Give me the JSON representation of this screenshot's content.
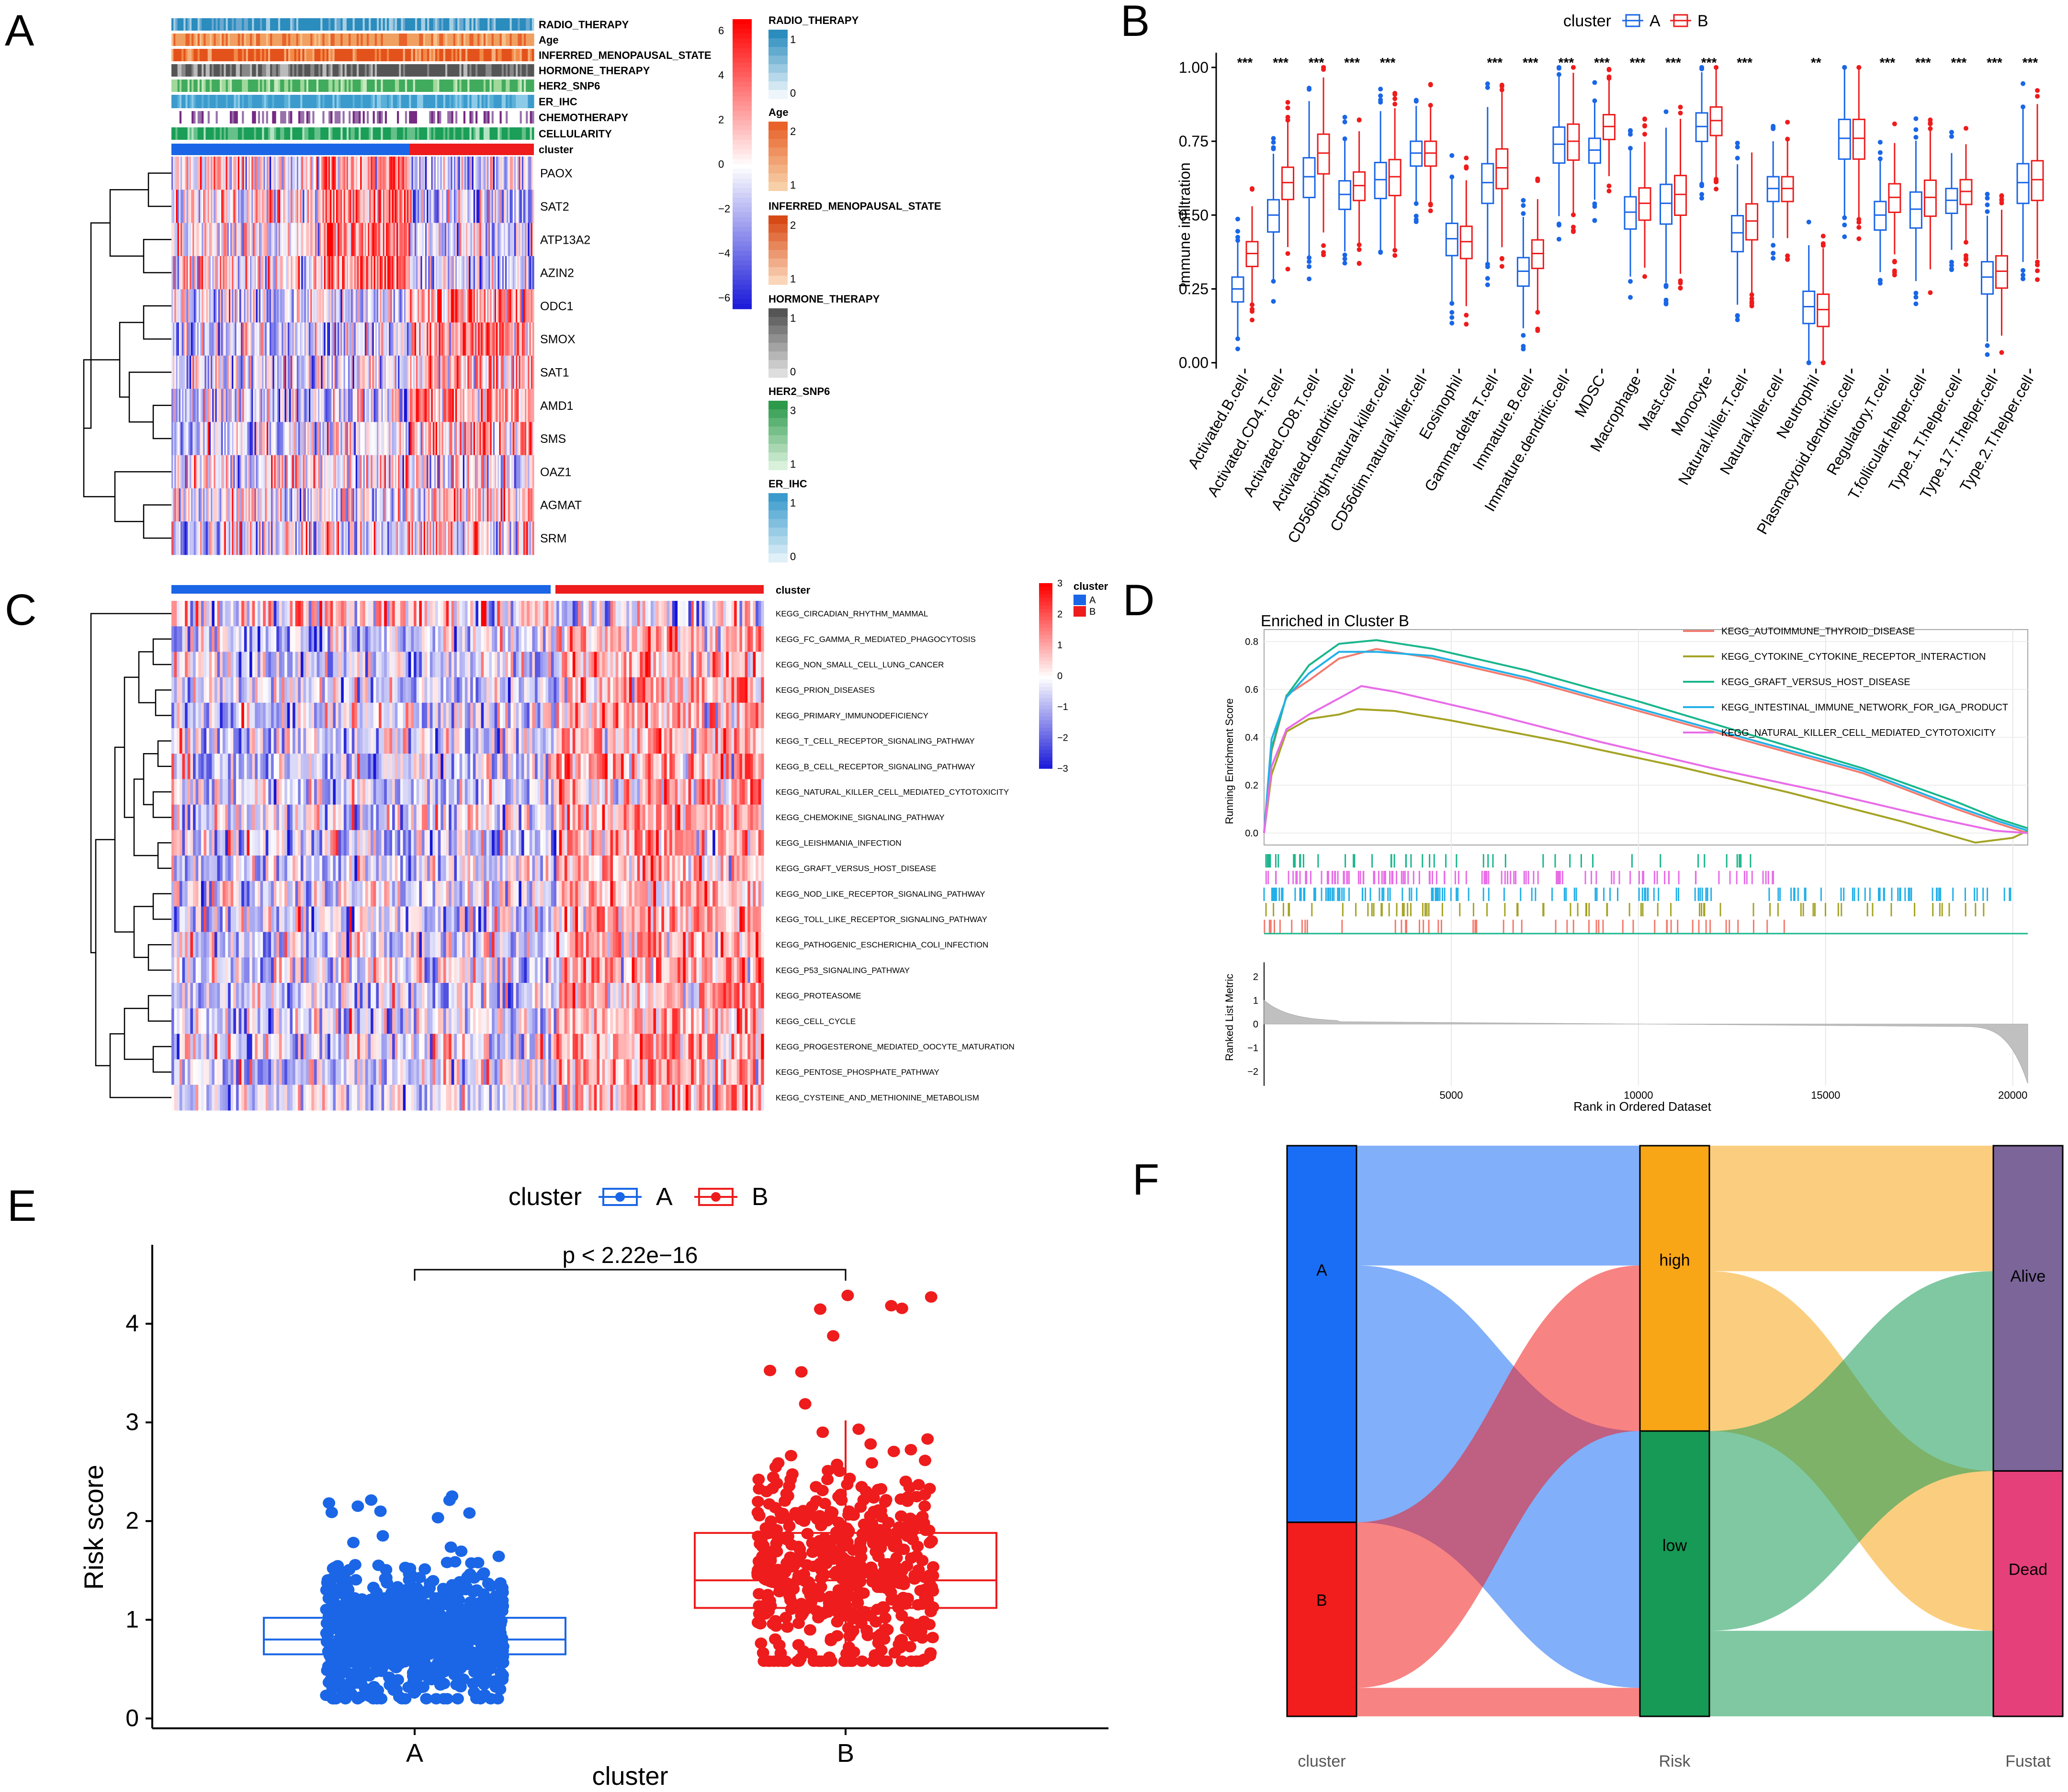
{
  "figure": {
    "panel_letters": [
      "A",
      "B",
      "C",
      "D",
      "E",
      "F"
    ]
  },
  "colors": {
    "cluster_a": "#1a66e6",
    "cluster_b": "#ee1c1c",
    "heat_high": "#ff0000",
    "heat_mid": "#ffffff",
    "heat_low": "#1414d8",
    "gsea_colors": [
      "#f37a6e",
      "#a5a324",
      "#1ab68c",
      "#22b0e8",
      "#e86ce8"
    ],
    "sankey_a": "#1a6ef5",
    "sankey_b": "#f21d1d",
    "sankey_high": "#f8a516",
    "sankey_low": "#169a55",
    "sankey_alive": "#7b6599",
    "sankey_dead": "#e5407a"
  },
  "chart_data": [
    {
      "panel": "A",
      "type": "heatmap",
      "annotation_tracks": [
        "RADIO_THERAPY",
        "Age",
        "INFERRED_MENOPAUSAL_STATE",
        "HORMONE_THERAPY",
        "HER2_SNP6",
        "ER_IHC",
        "CHEMOTHERAPY",
        "CELLULARITY",
        "cluster"
      ],
      "rows": [
        "PAOX",
        "SAT2",
        "ATP13A2",
        "AZIN2",
        "ODC1",
        "SMOX",
        "SAT1",
        "AMD1",
        "SMS",
        "OAZ1",
        "AGMAT",
        "SRM"
      ],
      "color_scale": {
        "ticks": [
          "6",
          "4",
          "2",
          "0",
          "−2",
          "−4",
          "−6"
        ]
      },
      "legends": [
        {
          "title": "RADIO_THERAPY",
          "labels": [
            "1",
            "0"
          ]
        },
        {
          "title": "Age",
          "labels": [
            "2",
            "1"
          ]
        },
        {
          "title": "INFERRED_MENOPAUSAL_STATE",
          "labels": [
            "2",
            "1"
          ]
        },
        {
          "title": "HORMONE_THERAPY",
          "labels": [
            "1",
            "0"
          ]
        },
        {
          "title": "HER2_SNP6",
          "labels": [
            "3",
            "1"
          ]
        },
        {
          "title": "ER_IHC",
          "labels": [
            "1",
            "0"
          ]
        }
      ]
    },
    {
      "panel": "B",
      "type": "box",
      "legend_title": "cluster",
      "legend_labels": [
        "A",
        "B"
      ],
      "ylabel": "Immune infiltration",
      "yticks": [
        "0.00",
        "0.25",
        "0.50",
        "0.75",
        "1.00"
      ],
      "ylim": [
        -0.02,
        1.05
      ],
      "categories": [
        "Activated.B.cell",
        "Activated.CD4.T.cell",
        "Activated.CD8.T.cell",
        "Activated.dendritic.cell",
        "CD56bright.natural.killer.cell",
        "CD56dim.natural.killer.cell",
        "Eosinophil",
        "Gamma.delta.T.cell",
        "Immature.B.cell",
        "Immature.dendritic.cell",
        "MDSC",
        "Macrophage",
        "Mast.cell",
        "Monocyte",
        "Natural.killer.T.cell",
        "Natural.killer.cell",
        "Neutrophil",
        "Plasmacytoid.dendritic.cell",
        "Regulatory.T.cell",
        "T.follicular.helper.cell",
        "Type.1.T.helper.cell",
        "Type.17.T.helper.cell",
        "Type.2.T.helper.cell"
      ],
      "significance": [
        "***",
        "***",
        "***",
        "***",
        "***",
        "",
        "",
        "***",
        "***",
        "***",
        "***",
        "***",
        "***",
        "***",
        "***",
        "",
        "**",
        "",
        "***",
        "***",
        "***",
        "***",
        "***"
      ],
      "series": [
        {
          "name": "A",
          "median": [
            0.25,
            0.5,
            0.63,
            0.57,
            0.62,
            0.71,
            0.42,
            0.61,
            0.31,
            0.74,
            0.72,
            0.51,
            0.54,
            0.8,
            0.44,
            0.59,
            0.19,
            0.76,
            0.5,
            0.52,
            0.55,
            0.29,
            0.61
          ]
        },
        {
          "name": "B",
          "median": [
            0.37,
            0.61,
            0.71,
            0.6,
            0.63,
            0.71,
            0.41,
            0.66,
            0.37,
            0.75,
            0.8,
            0.54,
            0.57,
            0.82,
            0.48,
            0.59,
            0.18,
            0.76,
            0.56,
            0.56,
            0.58,
            0.31,
            0.62
          ]
        }
      ]
    },
    {
      "panel": "C",
      "type": "heatmap",
      "annotation_label": "cluster",
      "legend_title": "cluster",
      "legend_labels": [
        "A",
        "B"
      ],
      "color_scale": {
        "ticks": [
          "3",
          "2",
          "1",
          "0",
          "−1",
          "−2",
          "−3"
        ]
      },
      "rows": [
        "KEGG_CIRCADIAN_RHYTHM_MAMMAL",
        "KEGG_FC_GAMMA_R_MEDIATED_PHAGOCYTOSIS",
        "KEGG_NON_SMALL_CELL_LUNG_CANCER",
        "KEGG_PRION_DISEASES",
        "KEGG_PRIMARY_IMMUNODEFICIENCY",
        "KEGG_T_CELL_RECEPTOR_SIGNALING_PATHWAY",
        "KEGG_B_CELL_RECEPTOR_SIGNALING_PATHWAY",
        "KEGG_NATURAL_KILLER_CELL_MEDIATED_CYTOTOXICITY",
        "KEGG_CHEMOKINE_SIGNALING_PATHWAY",
        "KEGG_LEISHMANIA_INFECTION",
        "KEGG_GRAFT_VERSUS_HOST_DISEASE",
        "KEGG_NOD_LIKE_RECEPTOR_SIGNALING_PATHWAY",
        "KEGG_TOLL_LIKE_RECEPTOR_SIGNALING_PATHWAY",
        "KEGG_PATHOGENIC_ESCHERICHIA_COLI_INFECTION",
        "KEGG_P53_SIGNALING_PATHWAY",
        "KEGG_PROTEASOME",
        "KEGG_CELL_CYCLE",
        "KEGG_PROGESTERONE_MEDIATED_OOCYTE_MATURATION",
        "KEGG_PENTOSE_PHOSPHATE_PATHWAY",
        "KEGG_CYSTEINE_AND_METHIONINE_METABOLISM"
      ]
    },
    {
      "panel": "D",
      "type": "line",
      "title": "Enriched in Cluster B",
      "ylabel": "Running Enrichment Score",
      "ylabel2": "Ranked List Metric",
      "xlabel": "Rank in Ordered Dataset",
      "xlim": [
        0,
        20400
      ],
      "xticks": [
        "5000",
        "10000",
        "15000",
        "20000"
      ],
      "yticks": [
        "0.0",
        "0.2",
        "0.4",
        "0.6",
        "0.8"
      ],
      "yticks2": [
        "2",
        "1",
        "0",
        "−1",
        "−2"
      ],
      "series": [
        {
          "name": "KEGG_AUTOIMMUNE_THYROID_DISEASE",
          "x": [
            0,
            200,
            600,
            1200,
            2000,
            3000,
            4500,
            7000,
            10000,
            13000,
            16000,
            18500,
            19600,
            20400
          ],
          "y": [
            0,
            0.35,
            0.58,
            0.65,
            0.74,
            0.77,
            0.73,
            0.64,
            0.51,
            0.38,
            0.25,
            0.1,
            0.04,
            0.0
          ]
        },
        {
          "name": "KEGG_CYTOKINE_CYTOKINE_RECEPTOR_INTERACTION",
          "x": [
            0,
            200,
            600,
            1200,
            2000,
            2500,
            3500,
            5000,
            8000,
            11000,
            14000,
            17000,
            19000,
            20000,
            20400
          ],
          "y": [
            0,
            0.25,
            0.43,
            0.49,
            0.51,
            0.53,
            0.51,
            0.47,
            0.38,
            0.28,
            0.17,
            0.05,
            -0.04,
            -0.02,
            0.01
          ]
        },
        {
          "name": "KEGG_GRAFT_VERSUS_HOST_DISEASE",
          "x": [
            0,
            200,
            600,
            1200,
            2000,
            3000,
            4500,
            7000,
            10000,
            13000,
            16000,
            18500,
            19600,
            20400
          ],
          "y": [
            0,
            0.35,
            0.58,
            0.7,
            0.79,
            0.8,
            0.77,
            0.68,
            0.55,
            0.41,
            0.27,
            0.13,
            0.06,
            0.02
          ]
        },
        {
          "name": "KEGG_INTESTINAL_IMMUNE_NETWORK_FOR_IGA_PRODUCT",
          "x": [
            0,
            200,
            600,
            1200,
            2000,
            3000,
            4500,
            7000,
            10000,
            13000,
            16000,
            18500,
            19600,
            20400
          ],
          "y": [
            0,
            0.38,
            0.57,
            0.68,
            0.76,
            0.77,
            0.74,
            0.65,
            0.52,
            0.39,
            0.26,
            0.11,
            0.05,
            0.01
          ]
        },
        {
          "name": "KEGG_NATURAL_KILLER_CELL_MEDIATED_CYTOTOXICITY",
          "x": [
            0,
            200,
            600,
            1200,
            2000,
            2600,
            3500,
            6000,
            9000,
            12000,
            15000,
            18000,
            19500,
            20400
          ],
          "y": [
            0,
            0.28,
            0.42,
            0.5,
            0.57,
            0.6,
            0.59,
            0.5,
            0.38,
            0.27,
            0.17,
            0.06,
            0.01,
            0.0
          ]
        }
      ]
    },
    {
      "panel": "E",
      "type": "scatter",
      "legend_title": "cluster",
      "legend_labels": [
        "A",
        "B"
      ],
      "ylabel": "Risk score",
      "xlabel": "cluster",
      "categories": [
        "A",
        "B"
      ],
      "yticks": [
        "0",
        "1",
        "2",
        "3",
        "4"
      ],
      "ylim": [
        -0.1,
        4.8
      ],
      "pvalue": "p < 2.22e−16",
      "box": [
        {
          "name": "A",
          "q1": 0.65,
          "median": 0.8,
          "q3": 1.02,
          "min": 0.2,
          "max": 1.55
        },
        {
          "name": "B",
          "q1": 1.12,
          "median": 1.4,
          "q3": 1.88,
          "min": 0.58,
          "max": 3.02
        }
      ]
    },
    {
      "panel": "F",
      "type": "sankey",
      "axes": [
        "cluster",
        "Risk",
        "Fustat"
      ],
      "nodes": {
        "cluster": [
          {
            "name": "A",
            "value": 0.66
          },
          {
            "name": "B",
            "value": 0.34
          }
        ],
        "Risk": [
          {
            "name": "high",
            "value": 0.5
          },
          {
            "name": "low",
            "value": 0.5
          }
        ],
        "Fustat": [
          {
            "name": "Alive",
            "value": 0.57
          },
          {
            "name": "Dead",
            "value": 0.43
          }
        ]
      },
      "flows_cluster_risk": [
        {
          "from": "A",
          "to": "high",
          "value": 0.21
        },
        {
          "from": "A",
          "to": "low",
          "value": 0.45
        },
        {
          "from": "B",
          "to": "high",
          "value": 0.29
        },
        {
          "from": "B",
          "to": "low",
          "value": 0.05
        }
      ],
      "flows_risk_fustat": [
        {
          "from": "high",
          "to": "Alive",
          "value": 0.22
        },
        {
          "from": "high",
          "to": "Dead",
          "value": 0.28
        },
        {
          "from": "low",
          "to": "Alive",
          "value": 0.35
        },
        {
          "from": "low",
          "to": "Dead",
          "value": 0.15
        }
      ]
    }
  ]
}
